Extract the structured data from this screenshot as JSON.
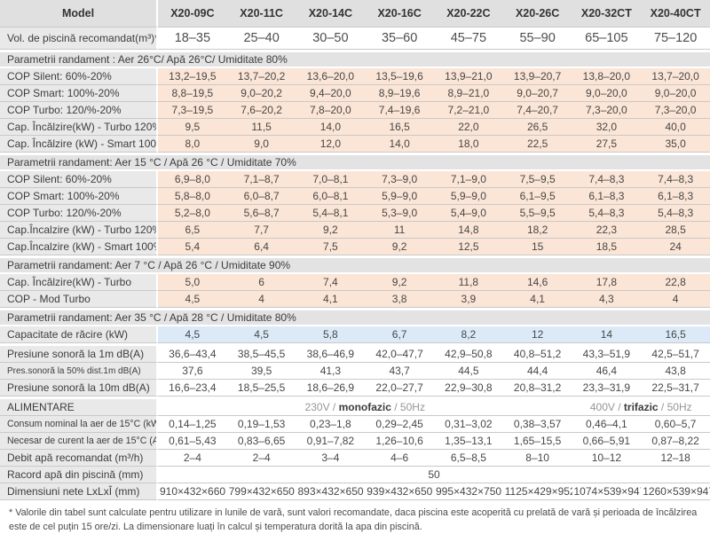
{
  "colors": {
    "heating_highlight": "#fbe5d6",
    "cooling_highlight": "#dceaf7",
    "header_gray": "#e0e0e0",
    "label_gray": "#e9e9e9"
  },
  "table": {
    "columns": [
      "Model",
      "X20-09C",
      "X20-11C",
      "X20-14C",
      "X20-16C",
      "X20-22C",
      "X20-26C",
      "X20-32CT",
      "X20-40CT"
    ],
    "rows": [
      {
        "type": "data",
        "cls": "white",
        "rowcls": "volume",
        "label": "Vol. de piscină recomandat(m³)*",
        "values": [
          "18–35",
          "25–40",
          "30–50",
          "35–60",
          "45–75",
          "55–90",
          "65–105",
          "75–120"
        ]
      },
      {
        "type": "section",
        "gap": true,
        "label": "Parametrii randament : Aer 26°C/ Apă 26°C/ Umiditate 80%"
      },
      {
        "type": "data",
        "cls": "peach",
        "label": "COP Silent: 60%-20%",
        "values": [
          "13,2–19,5",
          "13,7–20,2",
          "13,6–20,0",
          "13,5–19,6",
          "13,9–21,0",
          "13,9–20,7",
          "13,8–20,0",
          "13,7–20,0"
        ]
      },
      {
        "type": "data",
        "cls": "peach",
        "label": "COP Smart: 100%-20%",
        "values": [
          "8,8–19,5",
          "9,0–20,2",
          "9,4–20,0",
          "8,9–19,6",
          "8,9–21,0",
          "9,0–20,7",
          "9,0–20,0",
          "9,0–20,0"
        ]
      },
      {
        "type": "data",
        "cls": "peach",
        "label": "COP Turbo: 120/%-20%",
        "values": [
          "7,3–19,5",
          "7,6–20,2",
          "7,8–20,0",
          "7,4–19,6",
          "7,2–21,0",
          "7,4–20,7",
          "7,3–20,0",
          "7,3–20,0"
        ]
      },
      {
        "type": "data",
        "cls": "peach",
        "label": "Cap. Încălzire(kW) - Turbo 120%",
        "values": [
          "9,5",
          "11,5",
          "14,0",
          "16,5",
          "22,0",
          "26,5",
          "32,0",
          "40,0"
        ]
      },
      {
        "type": "data",
        "cls": "peach",
        "label": "Cap. Încălzire (kW) - Smart 100%",
        "values": [
          "8,0",
          "9,0",
          "12,0",
          "14,0",
          "18,0",
          "22,5",
          "27,5",
          "35,0"
        ]
      },
      {
        "type": "section",
        "gap": true,
        "label": "Parametrii randament: Aer 15 °C / Apă 26 °C / Umiditate 70%"
      },
      {
        "type": "data",
        "cls": "peach",
        "label": "COP Silent: 60%-20%",
        "values": [
          "6,9–8,0",
          "7,1–8,7",
          "7,0–8,1",
          "7,3–9,0",
          "7,1–9,0",
          "7,5–9,5",
          "7,4–8,3",
          "7,4–8,3"
        ]
      },
      {
        "type": "data",
        "cls": "peach",
        "label": "COP Smart: 100%-20%",
        "values": [
          "5,8–8,0",
          "6,0–8,7",
          "6,0–8,1",
          "5,9–9,0",
          "5,9–9,0",
          "6,1–9,5",
          "6,1–8,3",
          "6,1–8,3"
        ]
      },
      {
        "type": "data",
        "cls": "peach",
        "label": "COP Turbo: 120/%-20%",
        "values": [
          "5,2–8,0",
          "5,6–8,7",
          "5,4–8,1",
          "5,3–9,0",
          "5,4–9,0",
          "5,5–9,5",
          "5,4–8,3",
          "5,4–8,3"
        ]
      },
      {
        "type": "data",
        "cls": "peach",
        "label": "Cap.Încalzire (kW) - Turbo 120%",
        "values": [
          "6,5",
          "7,7",
          "9,2",
          "11",
          "14,8",
          "18,2",
          "22,3",
          "28,5"
        ]
      },
      {
        "type": "data",
        "cls": "peach",
        "label": "Cap.Încalzire (kW) - Smart 100%",
        "values": [
          "5,4",
          "6,4",
          "7,5",
          "9,2",
          "12,5",
          "15",
          "18,5",
          "24"
        ]
      },
      {
        "type": "section",
        "gap": true,
        "label": "Parametrii randament: Aer 7 °C / Apă 26 °C / Umiditate 90%"
      },
      {
        "type": "data",
        "cls": "peach",
        "label": "Cap. Încălzire(kW) - Turbo",
        "values": [
          "5,0",
          "6",
          "7,4",
          "9,2",
          "11,8",
          "14,6",
          "17,8",
          "22,8"
        ]
      },
      {
        "type": "data",
        "cls": "peach",
        "label": "COP - Mod Turbo",
        "values": [
          "4,5",
          "4",
          "4,1",
          "3,8",
          "3,9",
          "4,1",
          "4,3",
          "4"
        ]
      },
      {
        "type": "section",
        "gap": true,
        "label": "Parametrii randament: Aer 35 °C / Apă 28 °C / Umiditate 80%"
      },
      {
        "type": "data",
        "cls": "blue",
        "label": "Capacitate de răcire (kW)",
        "values": [
          "4,5",
          "4,5",
          "5,8",
          "6,7",
          "8,2",
          "12",
          "14",
          "16,5"
        ]
      },
      {
        "type": "data",
        "cls": "white",
        "gap": true,
        "label": "Presiune sonoră la 1m dB(A)",
        "values": [
          "36,6–43,4",
          "38,5–45,5",
          "38,6–46,9",
          "42,0–47,7",
          "42,9–50,8",
          "40,8–51,2",
          "43,3–51,9",
          "42,5–51,7"
        ]
      },
      {
        "type": "data",
        "cls": "white",
        "labelSize": "xs",
        "label": "Pres.sonoră la 50% dist.1m dB(A)",
        "values": [
          "37,6",
          "39,5",
          "41,3",
          "43,7",
          "44,5",
          "44,4",
          "46,4",
          "43,8"
        ]
      },
      {
        "type": "data",
        "cls": "white",
        "label": "Presiune sonoră la 10m dB(A)",
        "values": [
          "16,6–23,4",
          "18,5–25,5",
          "18,6–26,9",
          "22,0–27,7",
          "22,9–30,8",
          "20,8–31,2",
          "23,3–31,9",
          "22,5–31,7"
        ]
      },
      {
        "type": "power",
        "gap": true,
        "label": "ALIMENTARE",
        "left": {
          "prefix": "230V / ",
          "bold": "monofazic",
          "suffix": " / 50Hz"
        },
        "right": {
          "prefix": "400V / ",
          "bold": "trifazic",
          "suffix": " / 50Hz"
        }
      },
      {
        "type": "data",
        "cls": "white",
        "labelSize": "s",
        "label": "Consum nominal la aer de 15°C (kW)",
        "values": [
          "0,14–1,25",
          "0,19–1,53",
          "0,23–1,8",
          "0,29–2,45",
          "0,31–3,02",
          "0,38–3,57",
          "0,46–4,1",
          "0,60–5,7"
        ]
      },
      {
        "type": "data",
        "cls": "white",
        "labelSize": "s",
        "label": "Necesar de curent la aer de 15°C (A)",
        "values": [
          "0,61–5,43",
          "0,83–6,65",
          "0,91–7,82",
          "1,26–10,6",
          "1,35–13,1",
          "1,65–15,5",
          "0,66–5,91",
          "0,87–8,22"
        ]
      },
      {
        "type": "data",
        "cls": "white",
        "label": "Debit apă recomandat (m³/h)",
        "values": [
          "2–4",
          "2–4",
          "3–4",
          "4–6",
          "6,5–8,5",
          "8–10",
          "10–12",
          "12–18"
        ]
      },
      {
        "type": "span",
        "label": "Racord apă din piscină (mm)",
        "value": "50"
      },
      {
        "type": "data",
        "cls": "white",
        "label": "Dimensiuni nete LxLxÎ (mm)",
        "values": [
          "910×432×660",
          "799×432×650",
          "893×432×650",
          "939×432×650",
          "995×432×750",
          "1125×429×952",
          "1074×539×947",
          "1260×539×947"
        ]
      }
    ]
  },
  "footnote": "* Valorile din tabel sunt calculate pentru utilizare in lunile de vară, sunt valori recomandate, daca piscina este acoperită cu prelată de vară și perioada de încălzirea este de cel puțin 15 ore/zi. La dimensionare luați în calcul și temperatura dorită la apa din piscină."
}
